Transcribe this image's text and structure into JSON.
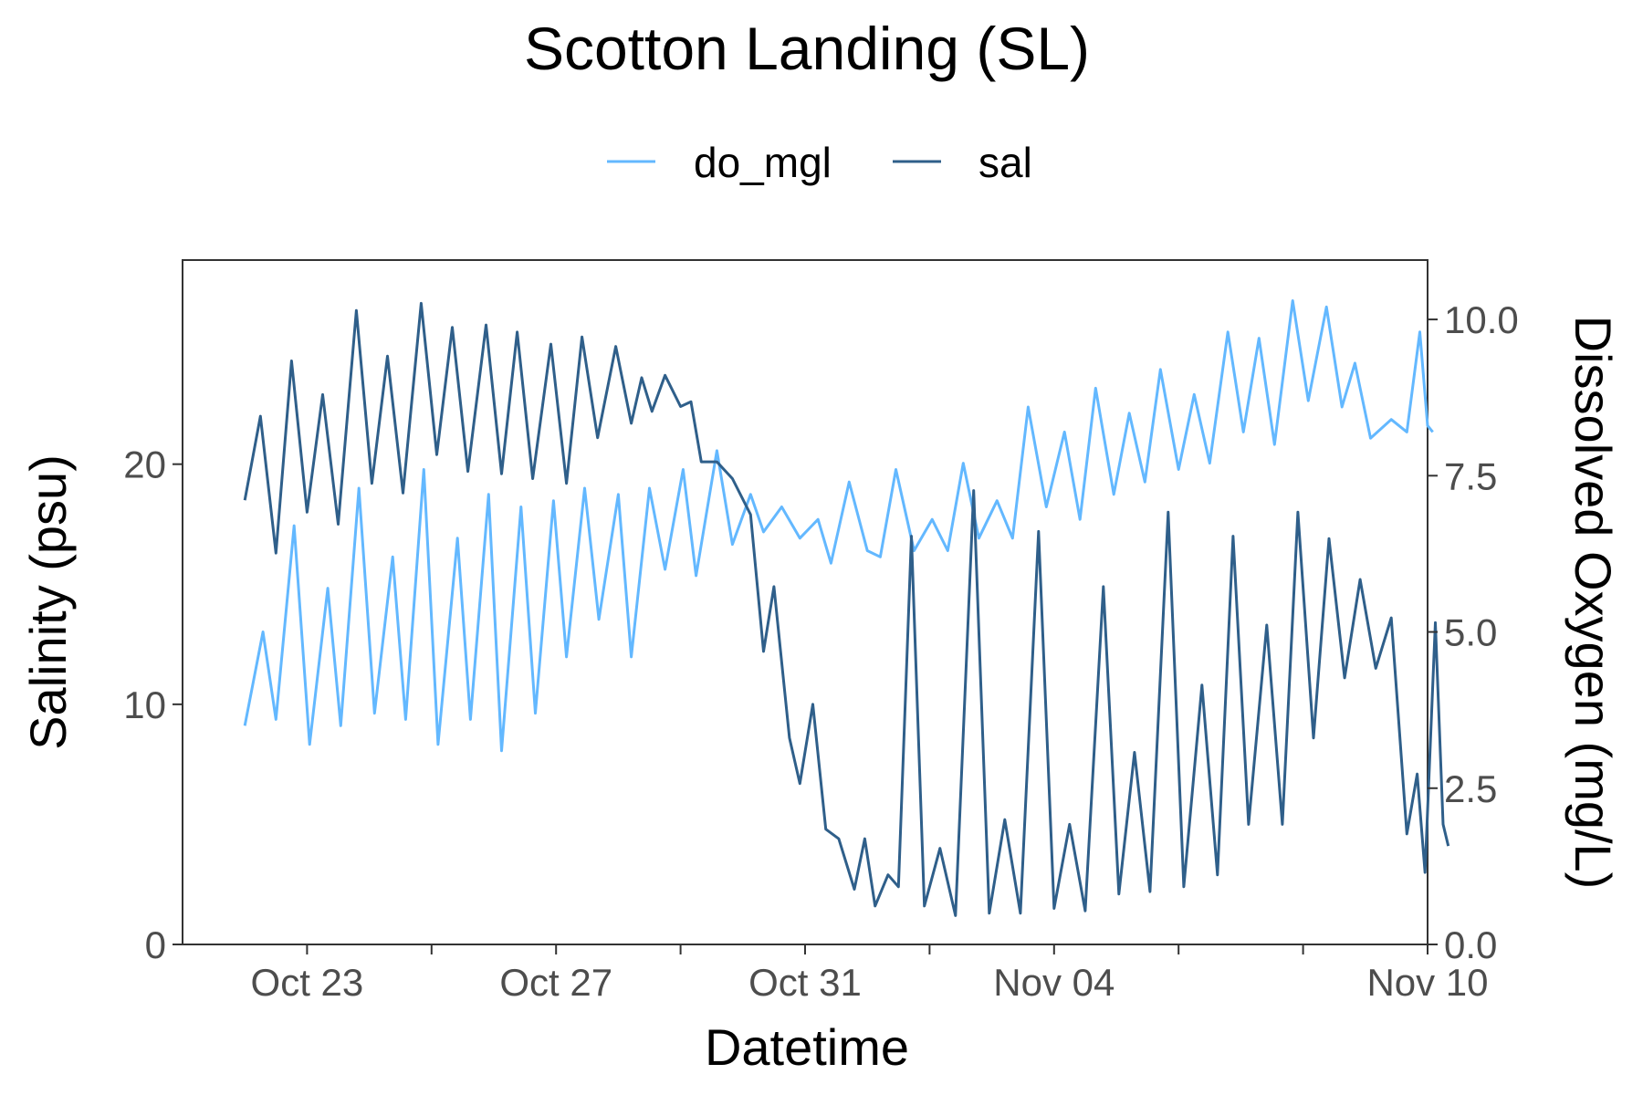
{
  "chart_data": {
    "type": "line",
    "title": "Scotton Landing (SL)",
    "xlabel": "Datetime",
    "ylabel_left": "Salinity (psu)",
    "ylabel_right": "Dissolved Oxygen (mg/L)",
    "x_range": [
      "2022-10-21",
      "2022-11-10"
    ],
    "y_left_range": [
      0,
      28.5
    ],
    "y_right_range": [
      0,
      10.95
    ],
    "x_ticks": [
      {
        "date": "2022-10-23",
        "label": "Oct 23"
      },
      {
        "date": "2022-10-27",
        "label": "Oct 27"
      },
      {
        "date": "2022-10-31",
        "label": "Oct 31"
      },
      {
        "date": "2022-11-04",
        "label": "Nov 04"
      },
      {
        "date": "2022-11-10",
        "label": "Nov 10"
      }
    ],
    "x_minor_ticks": [
      "2022-10-25",
      "2022-10-29",
      "2022-11-02",
      "2022-11-06",
      "2022-11-08"
    ],
    "y_left_ticks": [
      {
        "value": 0,
        "label": "0"
      },
      {
        "value": 10,
        "label": "10"
      },
      {
        "value": 20,
        "label": "20"
      }
    ],
    "y_right_ticks": [
      {
        "value": 0,
        "label": "0.0"
      },
      {
        "value": 2.5,
        "label": "2.5"
      },
      {
        "value": 5,
        "label": "5.0"
      },
      {
        "value": 7.5,
        "label": "7.5"
      },
      {
        "value": 10,
        "label": "10.0"
      }
    ],
    "grid": false,
    "legend_position": "top",
    "series": [
      {
        "name": "do_mgl",
        "axis": "right",
        "color": "#63b8ff",
        "points": [
          [
            "2022-10-22 00:00",
            3.5
          ],
          [
            "2022-10-22 07:00",
            5.0
          ],
          [
            "2022-10-22 12:00",
            3.6
          ],
          [
            "2022-10-22 19:00",
            6.7
          ],
          [
            "2022-10-23 01:00",
            3.2
          ],
          [
            "2022-10-23 08:00",
            5.7
          ],
          [
            "2022-10-23 13:00",
            3.5
          ],
          [
            "2022-10-23 20:00",
            7.3
          ],
          [
            "2022-10-24 02:00",
            3.7
          ],
          [
            "2022-10-24 09:00",
            6.2
          ],
          [
            "2022-10-24 14:00",
            3.6
          ],
          [
            "2022-10-24 21:00",
            7.6
          ],
          [
            "2022-10-25 02:30",
            3.2
          ],
          [
            "2022-10-25 10:00",
            6.5
          ],
          [
            "2022-10-25 15:00",
            3.6
          ],
          [
            "2022-10-25 22:00",
            7.2
          ],
          [
            "2022-10-26 03:00",
            3.1
          ],
          [
            "2022-10-26 10:30",
            7.0
          ],
          [
            "2022-10-26 16:00",
            3.7
          ],
          [
            "2022-10-26 23:00",
            7.1
          ],
          [
            "2022-10-27 04:00",
            4.6
          ],
          [
            "2022-10-27 11:00",
            7.3
          ],
          [
            "2022-10-27 16:30",
            5.2
          ],
          [
            "2022-10-28 00:00",
            7.2
          ],
          [
            "2022-10-28 05:00",
            4.6
          ],
          [
            "2022-10-28 12:00",
            7.3
          ],
          [
            "2022-10-28 18:00",
            6.0
          ],
          [
            "2022-10-29 01:00",
            7.6
          ],
          [
            "2022-10-29 06:00",
            5.9
          ],
          [
            "2022-10-29 14:00",
            7.9
          ],
          [
            "2022-10-29 20:00",
            6.4
          ],
          [
            "2022-10-30 03:00",
            7.2
          ],
          [
            "2022-10-30 08:00",
            6.6
          ],
          [
            "2022-10-30 15:00",
            7.0
          ],
          [
            "2022-10-30 22:00",
            6.5
          ],
          [
            "2022-10-31 05:00",
            6.8
          ],
          [
            "2022-10-31 10:00",
            6.1
          ],
          [
            "2022-10-31 17:00",
            7.4
          ],
          [
            "2022-11-01 00:00",
            6.3
          ],
          [
            "2022-11-01 05:00",
            6.2
          ],
          [
            "2022-11-01 11:00",
            7.6
          ],
          [
            "2022-11-01 18:00",
            6.3
          ],
          [
            "2022-11-02 01:00",
            6.8
          ],
          [
            "2022-11-02 07:00",
            6.3
          ],
          [
            "2022-11-02 13:00",
            7.7
          ],
          [
            "2022-11-02 19:00",
            6.5
          ],
          [
            "2022-11-03 02:00",
            7.1
          ],
          [
            "2022-11-03 08:00",
            6.5
          ],
          [
            "2022-11-03 14:00",
            8.6
          ],
          [
            "2022-11-03 21:00",
            7.0
          ],
          [
            "2022-11-04 04:00",
            8.2
          ],
          [
            "2022-11-04 10:00",
            6.8
          ],
          [
            "2022-11-04 16:00",
            8.9
          ],
          [
            "2022-11-04 23:00",
            7.2
          ],
          [
            "2022-11-05 05:00",
            8.5
          ],
          [
            "2022-11-05 11:00",
            7.4
          ],
          [
            "2022-11-05 17:00",
            9.2
          ],
          [
            "2022-11-06 00:00",
            7.6
          ],
          [
            "2022-11-06 06:00",
            8.8
          ],
          [
            "2022-11-06 12:00",
            7.7
          ],
          [
            "2022-11-06 19:00",
            9.8
          ],
          [
            "2022-11-07 01:00",
            8.2
          ],
          [
            "2022-11-07 07:00",
            9.7
          ],
          [
            "2022-11-07 13:00",
            8.0
          ],
          [
            "2022-11-07 20:00",
            10.3
          ],
          [
            "2022-11-08 02:00",
            8.7
          ],
          [
            "2022-11-08 09:00",
            10.2
          ],
          [
            "2022-11-08 15:00",
            8.6
          ],
          [
            "2022-11-08 20:00",
            9.3
          ],
          [
            "2022-11-09 02:00",
            8.1
          ],
          [
            "2022-11-09 10:00",
            8.4
          ],
          [
            "2022-11-09 16:00",
            8.2
          ],
          [
            "2022-11-09 21:00",
            9.8
          ],
          [
            "2022-11-10 00:00",
            8.3
          ],
          [
            "2022-11-10 02:00",
            8.2
          ]
        ]
      },
      {
        "name": "sal",
        "axis": "left",
        "color": "#2f5f8a",
        "points": [
          [
            "2022-10-22 00:00",
            18.5
          ],
          [
            "2022-10-22 06:00",
            22.0
          ],
          [
            "2022-10-22 12:00",
            16.3
          ],
          [
            "2022-10-22 18:00",
            24.3
          ],
          [
            "2022-10-23 00:00",
            18.0
          ],
          [
            "2022-10-23 06:00",
            22.9
          ],
          [
            "2022-10-23 12:00",
            17.5
          ],
          [
            "2022-10-23 19:00",
            26.4
          ],
          [
            "2022-10-24 01:00",
            19.2
          ],
          [
            "2022-10-24 07:00",
            24.5
          ],
          [
            "2022-10-24 13:00",
            18.8
          ],
          [
            "2022-10-24 20:00",
            26.7
          ],
          [
            "2022-10-25 02:00",
            20.4
          ],
          [
            "2022-10-25 08:00",
            25.7
          ],
          [
            "2022-10-25 14:00",
            19.7
          ],
          [
            "2022-10-25 21:00",
            25.8
          ],
          [
            "2022-10-26 03:00",
            19.6
          ],
          [
            "2022-10-26 09:00",
            25.5
          ],
          [
            "2022-10-26 15:00",
            19.4
          ],
          [
            "2022-10-26 22:00",
            25.0
          ],
          [
            "2022-10-27 04:00",
            19.2
          ],
          [
            "2022-10-27 10:00",
            25.3
          ],
          [
            "2022-10-27 16:00",
            21.1
          ],
          [
            "2022-10-27 23:00",
            24.9
          ],
          [
            "2022-10-28 05:00",
            21.7
          ],
          [
            "2022-10-28 09:00",
            23.6
          ],
          [
            "2022-10-28 13:00",
            22.2
          ],
          [
            "2022-10-28 18:00",
            23.7
          ],
          [
            "2022-10-29 00:00",
            22.4
          ],
          [
            "2022-10-29 04:00",
            22.6
          ],
          [
            "2022-10-29 08:00",
            20.1
          ],
          [
            "2022-10-29 14:00",
            20.1
          ],
          [
            "2022-10-29 20:00",
            19.4
          ],
          [
            "2022-10-30 03:00",
            17.9
          ],
          [
            "2022-10-30 08:00",
            12.2
          ],
          [
            "2022-10-30 12:00",
            14.9
          ],
          [
            "2022-10-30 18:00",
            8.6
          ],
          [
            "2022-10-30 22:00",
            6.7
          ],
          [
            "2022-10-31 03:00",
            10.0
          ],
          [
            "2022-10-31 08:00",
            4.8
          ],
          [
            "2022-10-31 13:00",
            4.4
          ],
          [
            "2022-10-31 19:00",
            2.3
          ],
          [
            "2022-10-31 23:00",
            4.4
          ],
          [
            "2022-11-01 03:00",
            1.6
          ],
          [
            "2022-11-01 08:00",
            2.9
          ],
          [
            "2022-11-01 12:00",
            2.4
          ],
          [
            "2022-11-01 17:00",
            17.0
          ],
          [
            "2022-11-01 22:00",
            1.6
          ],
          [
            "2022-11-02 04:00",
            4.0
          ],
          [
            "2022-11-02 10:00",
            1.2
          ],
          [
            "2022-11-02 17:00",
            18.9
          ],
          [
            "2022-11-02 23:00",
            1.3
          ],
          [
            "2022-11-03 05:00",
            5.2
          ],
          [
            "2022-11-03 11:00",
            1.3
          ],
          [
            "2022-11-03 18:00",
            17.2
          ],
          [
            "2022-11-04 00:00",
            1.5
          ],
          [
            "2022-11-04 06:00",
            5.0
          ],
          [
            "2022-11-04 12:00",
            1.4
          ],
          [
            "2022-11-04 19:00",
            14.9
          ],
          [
            "2022-11-05 01:00",
            2.1
          ],
          [
            "2022-11-05 07:00",
            8.0
          ],
          [
            "2022-11-05 13:00",
            2.2
          ],
          [
            "2022-11-05 20:00",
            18.0
          ],
          [
            "2022-11-06 02:00",
            2.4
          ],
          [
            "2022-11-06 09:00",
            10.8
          ],
          [
            "2022-11-06 15:00",
            2.9
          ],
          [
            "2022-11-06 21:00",
            17.0
          ],
          [
            "2022-11-07 03:00",
            5.0
          ],
          [
            "2022-11-07 10:00",
            13.3
          ],
          [
            "2022-11-07 16:00",
            5.0
          ],
          [
            "2022-11-07 22:00",
            18.0
          ],
          [
            "2022-11-08 04:00",
            8.6
          ],
          [
            "2022-11-08 10:00",
            16.9
          ],
          [
            "2022-11-08 16:00",
            11.1
          ],
          [
            "2022-11-08 22:00",
            15.2
          ],
          [
            "2022-11-09 04:00",
            11.5
          ],
          [
            "2022-11-09 10:00",
            13.6
          ],
          [
            "2022-11-09 16:00",
            4.6
          ],
          [
            "2022-11-09 20:00",
            7.1
          ],
          [
            "2022-11-09 23:00",
            3.0
          ],
          [
            "2022-11-10 03:00",
            13.4
          ],
          [
            "2022-11-10 06:00",
            5.0
          ],
          [
            "2022-11-10 08:00",
            4.1
          ]
        ]
      }
    ]
  }
}
